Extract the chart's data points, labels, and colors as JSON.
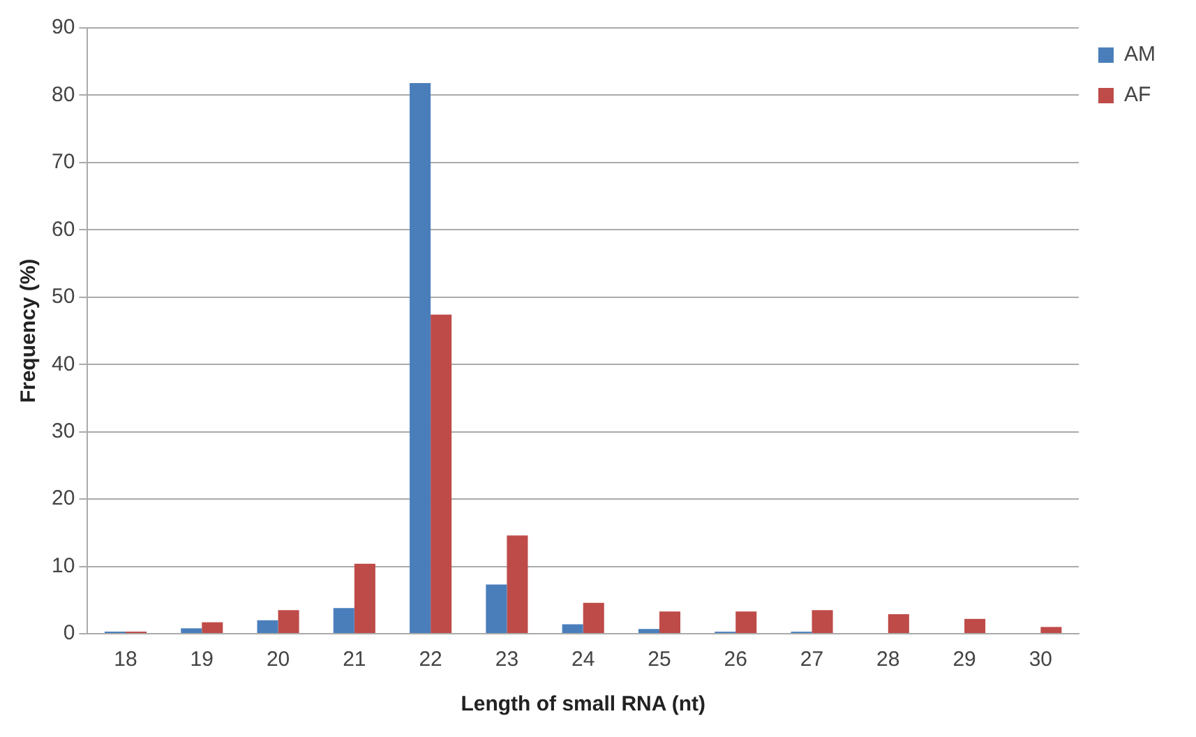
{
  "chart_data": {
    "type": "bar",
    "xlabel": "Length of small RNA (nt)",
    "ylabel": "Frequency (%)",
    "categories": [
      "18",
      "19",
      "20",
      "21",
      "22",
      "23",
      "24",
      "25",
      "26",
      "27",
      "28",
      "29",
      "30"
    ],
    "series": [
      {
        "name": "AM",
        "color": "#4a7ebb",
        "values": [
          0.3,
          0.8,
          2,
          3.8,
          81.8,
          7.3,
          1.4,
          0.7,
          0.3,
          0.3,
          0,
          0,
          0
        ]
      },
      {
        "name": "AF",
        "color": "#be4b48",
        "values": [
          0.3,
          1.7,
          3.5,
          10.4,
          47.4,
          14.6,
          4.6,
          3.3,
          3.3,
          3.5,
          2.9,
          2.2,
          1.0
        ]
      }
    ],
    "ylim": [
      0,
      90
    ],
    "yticks": [
      0,
      10,
      20,
      30,
      40,
      50,
      60,
      70,
      80,
      90
    ],
    "grid": "y",
    "legend": "top right"
  }
}
